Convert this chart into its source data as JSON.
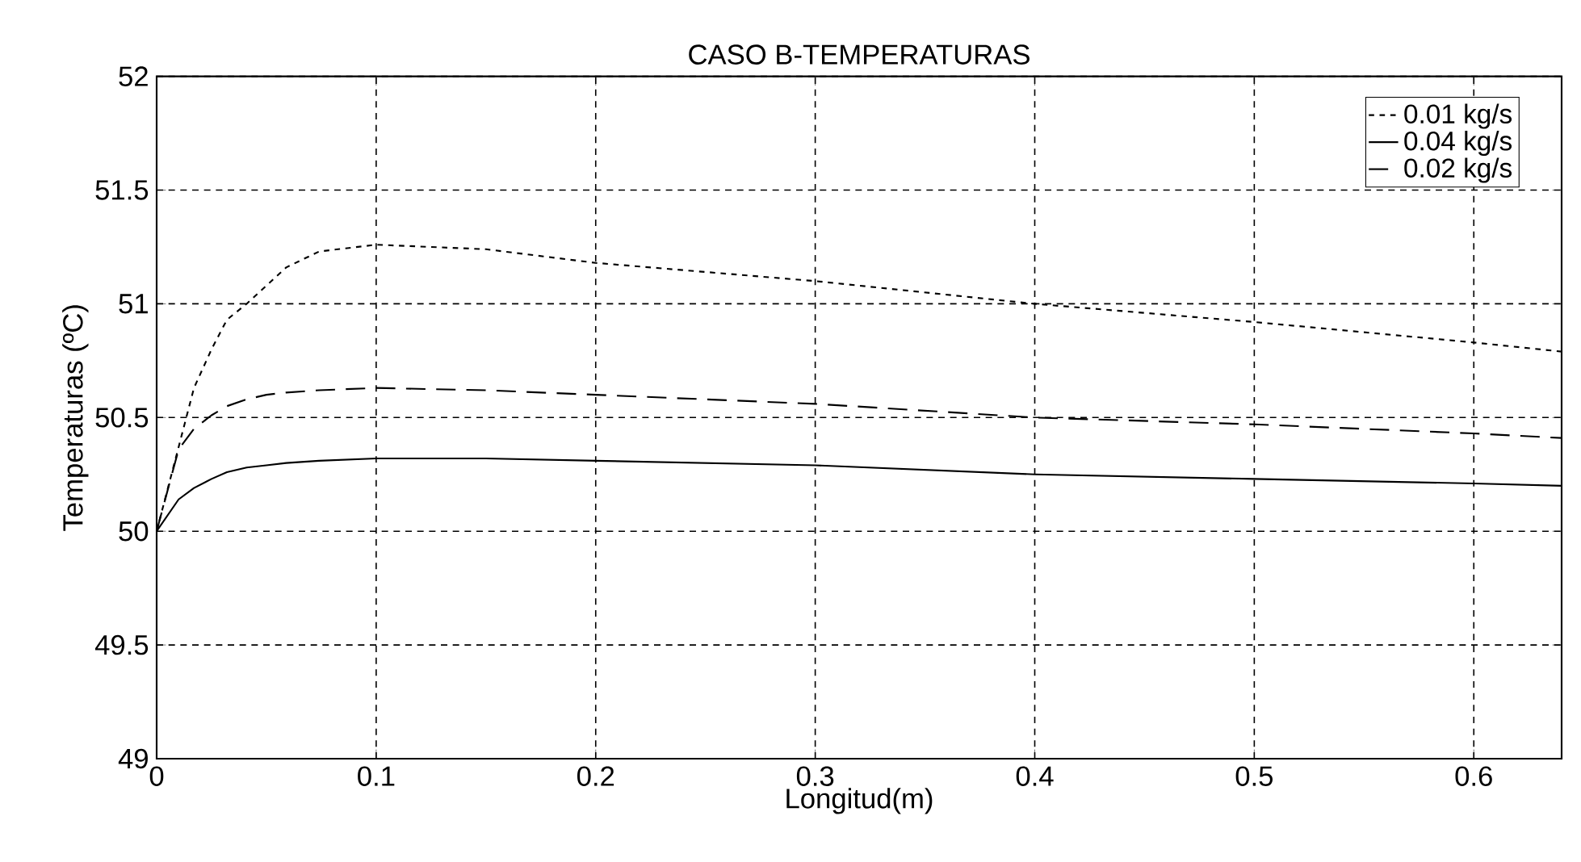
{
  "chart_data": {
    "type": "line",
    "title": "CASO B-TEMPERATURAS",
    "xlabel": "Longitud(m)",
    "ylabel": "Temperaturas (ºC)",
    "xlim": [
      0,
      0.64
    ],
    "ylim": [
      49,
      52
    ],
    "xticks": [
      0,
      0.1,
      0.2,
      0.3,
      0.4,
      0.5,
      0.6
    ],
    "yticks": [
      49,
      49.5,
      50,
      50.5,
      51,
      51.5,
      52
    ],
    "grid": true,
    "legend": "top right",
    "x": [
      0,
      0.01,
      0.017,
      0.025,
      0.032,
      0.041,
      0.05,
      0.059,
      0.074,
      0.1,
      0.15,
      0.2,
      0.3,
      0.4,
      0.5,
      0.6,
      0.64
    ],
    "series": [
      {
        "name": "0.01 kg/s",
        "color": "#000000",
        "line_style": "dotted",
        "values": [
          50,
          50.37,
          50.63,
          50.8,
          50.93,
          51.0,
          51.08,
          51.16,
          51.23,
          51.26,
          51.24,
          51.18,
          51.1,
          51.0,
          50.92,
          50.83,
          50.79
        ]
      },
      {
        "name": "0.04 kg/s",
        "color": "#000000",
        "line_style": "solid",
        "values": [
          50,
          50.14,
          50.19,
          50.23,
          50.26,
          50.28,
          50.29,
          50.3,
          50.31,
          50.32,
          50.32,
          50.31,
          50.29,
          50.25,
          50.23,
          50.21,
          50.2
        ]
      },
      {
        "name": "0.02 kg/s",
        "color": "#000000",
        "line_style": "dashed",
        "values": [
          50,
          50.36,
          50.45,
          50.51,
          50.55,
          50.58,
          50.6,
          50.61,
          50.62,
          50.63,
          50.62,
          50.6,
          50.56,
          50.5,
          50.47,
          50.43,
          50.41
        ]
      }
    ]
  }
}
